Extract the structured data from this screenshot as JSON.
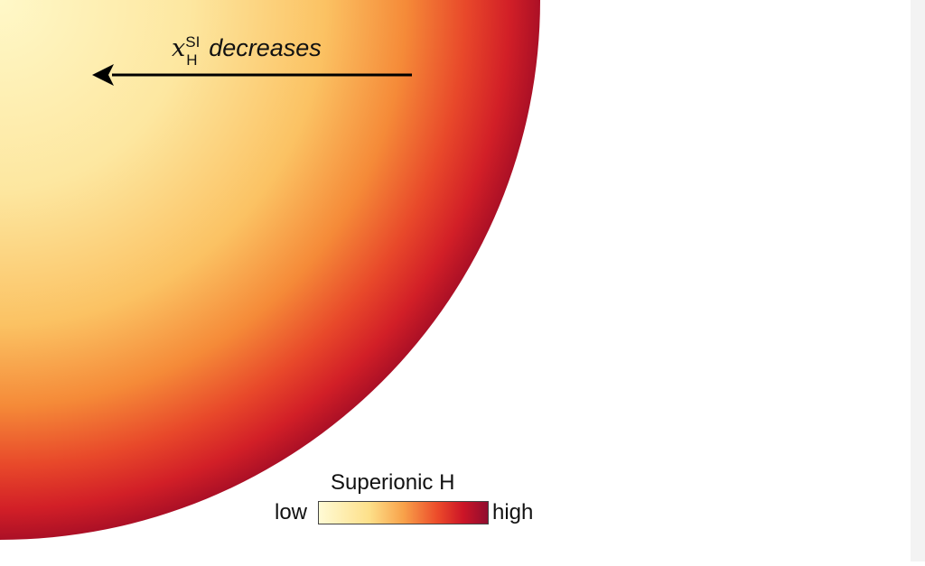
{
  "diagram": {
    "arrow_label": {
      "variable": "x",
      "superscript": "SI",
      "subscript": "H",
      "text": "decreases"
    },
    "legend": {
      "title": "Superionic H",
      "low_label": "low",
      "high_label": "high"
    },
    "colors": {
      "center": "#fff6c4",
      "mid": "#fcc762",
      "orange": "#f47a2c",
      "red": "#d61e26",
      "edge": "#a60f26",
      "legend_low": "#fffbd6",
      "legend_high": "#8e0c2f",
      "arrow": "#000000"
    }
  }
}
